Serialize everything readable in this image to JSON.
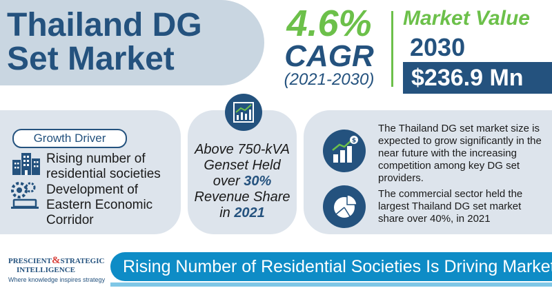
{
  "header": {
    "title": "Thailand DG Set Market"
  },
  "cagr": {
    "value": "4.6%",
    "label": "CAGR",
    "period": "(2021-2030)"
  },
  "market_value": {
    "label": "Market Value",
    "year": "2030",
    "amount": "$236.9 Mn"
  },
  "growth_driver": {
    "label": "Growth Driver",
    "items": [
      {
        "text": "Rising number of residential societies",
        "icon": "buildings-icon"
      },
      {
        "text": "Development of Eastern Economic Corridor",
        "icon": "gears-laptop-icon"
      }
    ]
  },
  "segment": {
    "icon": "chart-growth-icon",
    "text_before": "Above 750-kVA Genset Held over ",
    "highlight_share": "30%",
    "text_middle": " Revenue Share in ",
    "highlight_year": "2021"
  },
  "insights": [
    {
      "icon": "bar-chart-dollar-icon",
      "text": "The Thailand DG set market size is expected to grow significantly in the near future with the increasing competition among key DG set providers."
    },
    {
      "icon": "pie-chart-icon",
      "text": "The commercial sector held the largest Thailand DG set market share over 40%, in 2021"
    }
  ],
  "brand": {
    "line1_a": "PRESCIENT",
    "line1_amp": "&",
    "line1_b": "STRATEGIC",
    "line2": "INTELLIGENCE",
    "tagline": "Where knowledge inspires strategy"
  },
  "footer": {
    "banner": "Rising Number of Residential Societies Is Driving Market"
  },
  "colors": {
    "navy": "#24527e",
    "green": "#6cc04a",
    "panel": "#dde4ec",
    "banner": "#0e8cc6"
  }
}
